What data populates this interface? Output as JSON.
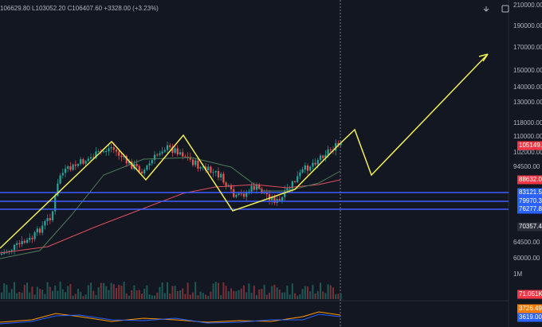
{
  "header": {
    "ohlc": "106629.80  L103052.20  C106407.60 +3328.00 (+3.23%)"
  },
  "price_axis": [
    "210000.00",
    "190000.00",
    "170000.00",
    "150000.00",
    "140000.00",
    "130000.00",
    "118000.00",
    "110000.00",
    "102000.00",
    "94500.00",
    "64500.00",
    "60000.00",
    "1M"
  ],
  "badges": [
    {
      "text": "105149.3",
      "kind": "red"
    },
    {
      "text": "88632.03",
      "kind": "red"
    },
    {
      "text": "83121.51",
      "kind": "blue"
    },
    {
      "text": "79970.36",
      "kind": "blue"
    },
    {
      "text": "76277.86",
      "kind": "blue"
    },
    {
      "text": "70357.46",
      "kind": "dark"
    },
    {
      "text": "71.051K",
      "kind": "red"
    },
    {
      "text": "3726.49",
      "kind": "orange"
    },
    {
      "text": "3619.00",
      "kind": "blue"
    }
  ]
}
